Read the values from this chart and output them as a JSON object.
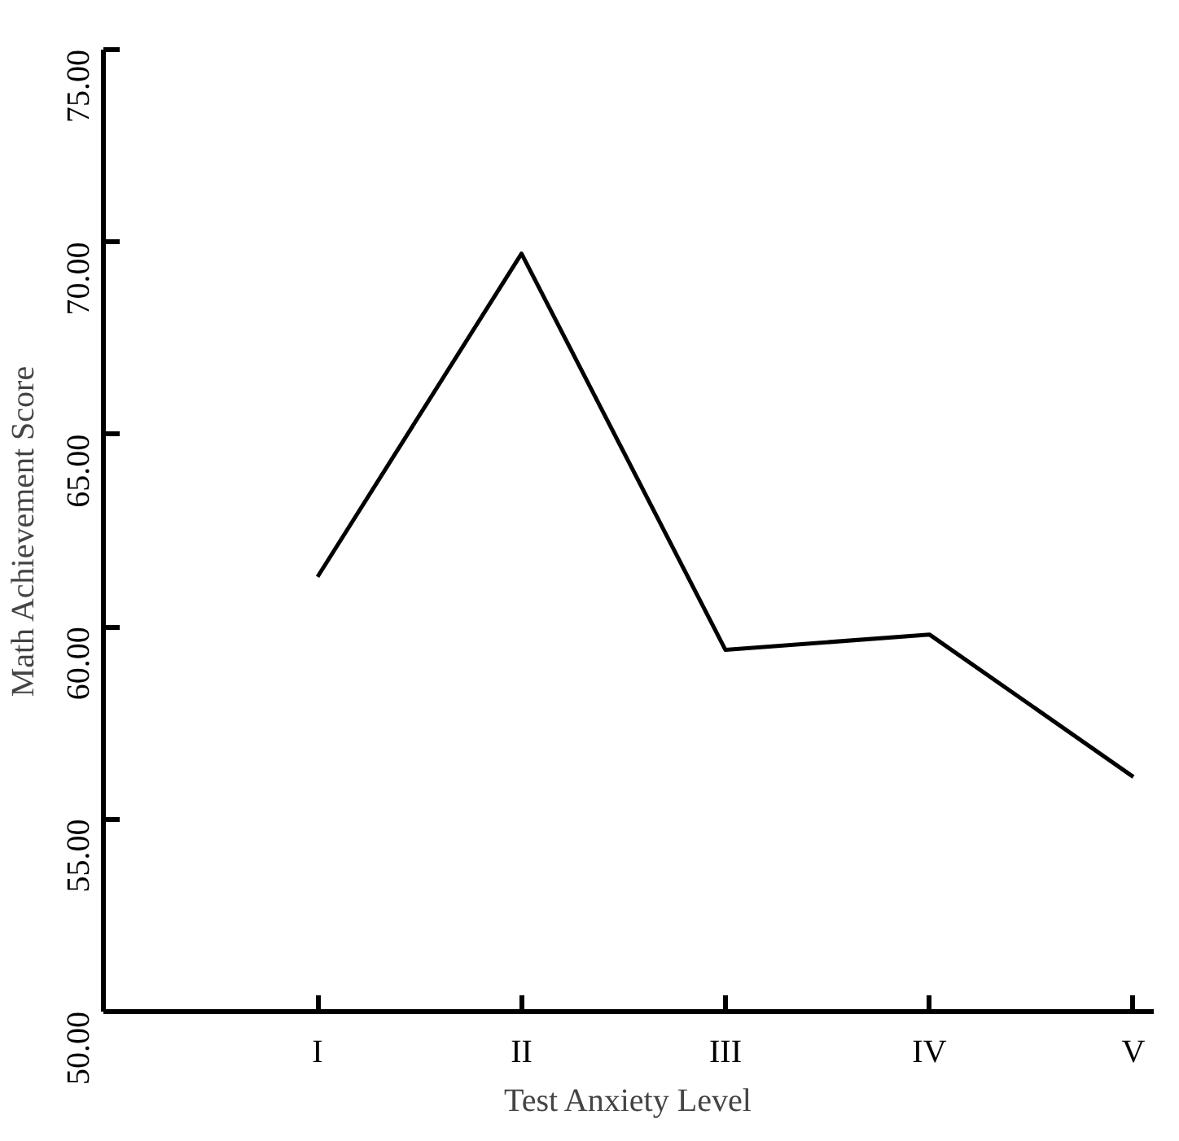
{
  "chart_data": {
    "type": "line",
    "xlabel": "Test Anxiety Level",
    "ylabel": "Math Achievement Score",
    "categories": [
      "I",
      "II",
      "III",
      "IV",
      "V"
    ],
    "series": [
      {
        "color": "#000000",
        "values": [
          61.3,
          69.7,
          59.4,
          59.8,
          56.1
        ]
      }
    ],
    "ylim": [
      50,
      75
    ],
    "yticks": [
      {
        "value": 50,
        "label": "50.00"
      },
      {
        "value": 55,
        "label": "55.00"
      },
      {
        "value": 60,
        "label": "60.00"
      },
      {
        "value": 65,
        "label": "65.00"
      },
      {
        "value": 70,
        "label": "70.00"
      },
      {
        "value": 75,
        "label": "75.00"
      }
    ],
    "grid": false,
    "marker": "none",
    "line_style": "solid"
  }
}
